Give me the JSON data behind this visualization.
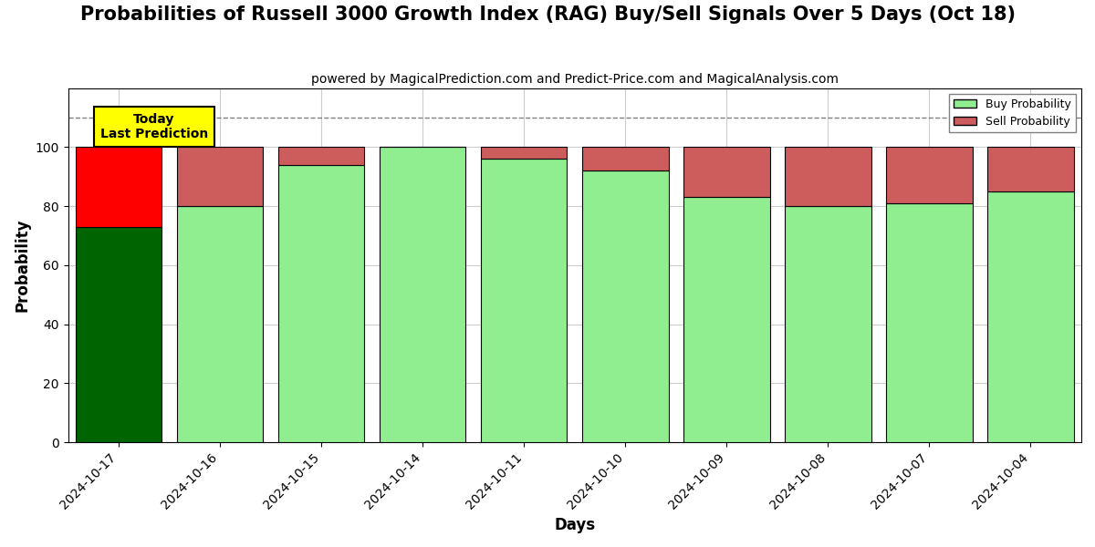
{
  "title": "Probabilities of Russell 3000 Growth Index (RAG) Buy/Sell Signals Over 5 Days (Oct 18)",
  "subtitle": "powered by MagicalPrediction.com and Predict-Price.com and MagicalAnalysis.com",
  "xlabel": "Days",
  "ylabel": "Probability",
  "dates": [
    "2024-10-17",
    "2024-10-16",
    "2024-10-15",
    "2024-10-14",
    "2024-10-11",
    "2024-10-10",
    "2024-10-09",
    "2024-10-08",
    "2024-10-07",
    "2024-10-04"
  ],
  "buy_values": [
    73,
    80,
    94,
    100,
    96,
    92,
    83,
    80,
    81,
    85
  ],
  "sell_values": [
    27,
    20,
    6,
    0,
    4,
    8,
    17,
    20,
    19,
    15
  ],
  "today_bar_buy_color": "#006400",
  "today_bar_sell_color": "#ff0000",
  "other_bar_buy_color": "#90EE90",
  "other_bar_sell_color": "#CD5C5C",
  "today_label": "Today\nLast Prediction",
  "legend_buy_label": "Buy Probability",
  "legend_sell_label": "Sell Probability",
  "ylim": [
    0,
    120
  ],
  "yticks": [
    0,
    20,
    40,
    60,
    80,
    100
  ],
  "dashed_line_y": 110,
  "background_color": "#ffffff",
  "grid_color": "#cccccc",
  "title_fontsize": 15,
  "subtitle_fontsize": 10,
  "bar_edge_color": "#000000",
  "bar_width": 0.85
}
